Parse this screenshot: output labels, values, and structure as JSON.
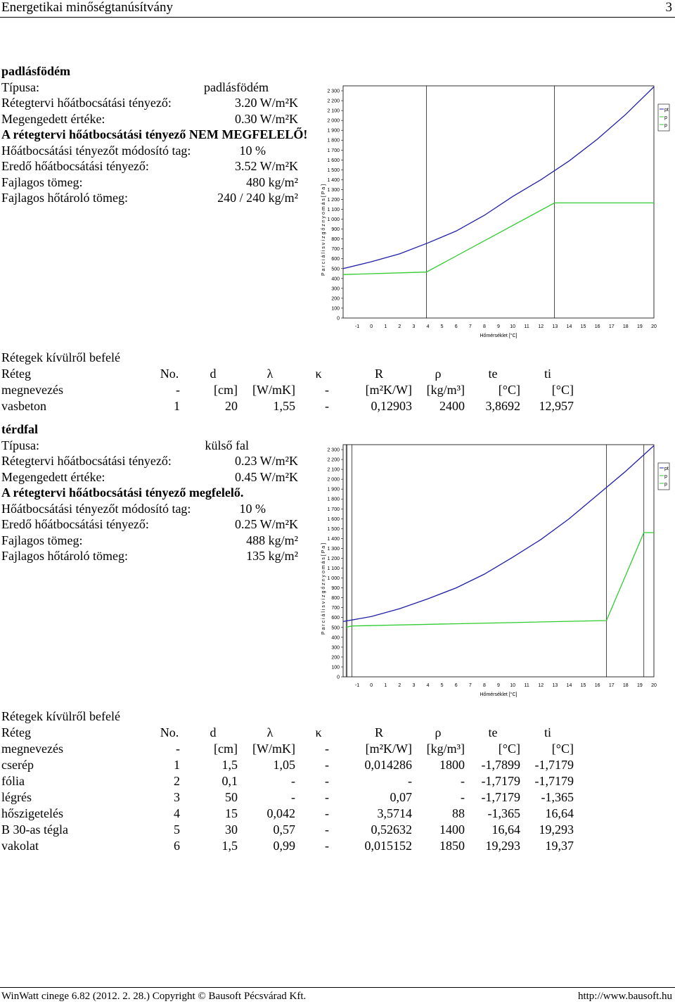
{
  "header": {
    "title": "Energetikai minőségtanúsítvány",
    "page": "3"
  },
  "section1": {
    "heading": "padlásfödém",
    "rows": [
      {
        "label": "Típusa:",
        "value": "padlásfödém"
      },
      {
        "label": "Rétegtervi hőátbocsátási tényező:",
        "value": "3.20 W/m²K"
      },
      {
        "label": "Megengedett értéke:",
        "value": "0.30 W/m²K"
      }
    ],
    "verdict": "A rétegtervi hőátbocsátási tényező NEM MEGFELELŐ!",
    "rows2": [
      {
        "label": "Hőátbocsátási tényezőt módosító tag:",
        "value": "10 %"
      },
      {
        "label": "Eredő hőátbocsátási tényező:",
        "value": "3.52 W/m²K"
      },
      {
        "label": "Fajlagos tömeg:",
        "value": "480 kg/m²"
      },
      {
        "label": "Fajlagos hőtároló tömeg:",
        "value": "240 / 240 kg/m²"
      }
    ],
    "layers_title": "Rétegek kívülről befelé",
    "layers": [
      [
        "vasbeton",
        "1",
        "20",
        "1,55",
        "-",
        "0,12903",
        "2400",
        "3,8692",
        "12,957"
      ]
    ]
  },
  "section2": {
    "heading": "térdfal",
    "rows": [
      {
        "label": "Típusa:",
        "value": "külső fal"
      },
      {
        "label": "Rétegtervi hőátbocsátási tényező:",
        "value": "0.23 W/m²K"
      },
      {
        "label": "Megengedett értéke:",
        "value": "0.45 W/m²K"
      }
    ],
    "verdict": "A rétegtervi hőátbocsátási tényező megfelelő.",
    "rows2": [
      {
        "label": "Hőátbocsátási tényezőt módosító tag:",
        "value": "10 %"
      },
      {
        "label": "Eredő hőátbocsátási tényező:",
        "value": "0.25 W/m²K"
      },
      {
        "label": "Fajlagos tömeg:",
        "value": "488 kg/m²"
      },
      {
        "label": "Fajlagos hőtároló tömeg:",
        "value": "135 kg/m²"
      }
    ],
    "layers_title": "Rétegek kívülről befelé",
    "layers": [
      [
        "cserép",
        "1",
        "1,5",
        "1,05",
        "-",
        "0,014286",
        "1800",
        "-1,7899",
        "-1,7179"
      ],
      [
        "fólia",
        "2",
        "0,1",
        "-",
        "-",
        "-",
        "-",
        "-1,7179",
        "-1,7179"
      ],
      [
        "légrés",
        "3",
        "50",
        "-",
        "-",
        "0,07",
        "-",
        "-1,7179",
        "-1,365"
      ],
      [
        "hőszigetelés",
        "4",
        "15",
        "0,042",
        "-",
        "3,5714",
        "88",
        "-1,365",
        "16,64"
      ],
      [
        "B 30-as tégla",
        "5",
        "30",
        "0,57",
        "-",
        "0,52632",
        "1400",
        "16,64",
        "19,293"
      ],
      [
        "vakolat",
        "6",
        "1,5",
        "0,99",
        "-",
        "0,015152",
        "1850",
        "19,293",
        "19,37"
      ]
    ]
  },
  "table_head": {
    "row1": [
      "Réteg",
      "No.",
      "d",
      "λ",
      "κ",
      "R",
      "ρ",
      "te",
      "ti"
    ],
    "row2": [
      "megnevezés",
      "-",
      "[cm]",
      "[W/mK]",
      "-",
      "[m²K/W]",
      "[kg/m³]",
      "[°C]",
      "[°C]"
    ]
  },
  "chart_data": [
    {
      "type": "line",
      "ylabel": "P a r c i á l i s   v í z g ő z n y o m á s  [ P a ]",
      "xlabel": "Hőmérséklet [°C]",
      "xlim": [
        -2,
        20
      ],
      "ylim": [
        0,
        2350
      ],
      "xticks": [
        "-1",
        "0",
        "1",
        "2",
        "3",
        "4",
        "5",
        "6",
        "7",
        "8",
        "9",
        "10",
        "11",
        "12",
        "13",
        "14",
        "15",
        "16",
        "17",
        "18",
        "19",
        "20"
      ],
      "yticks": [
        "0",
        "100",
        "200",
        "300",
        "400",
        "500",
        "600",
        "700",
        "800",
        "900",
        "1 000",
        "1 100",
        "1 200",
        "1 300",
        "1 400",
        "1 500",
        "1 600",
        "1 700",
        "1 800",
        "1 900",
        "2 000",
        "2 100",
        "2 200",
        "2 300"
      ],
      "legend": [
        "pt",
        "p",
        "p"
      ],
      "vlines": [
        3.9,
        12.96
      ],
      "series": [
        {
          "color": "#1f1fa8",
          "x": [
            -2,
            0,
            2,
            4,
            6,
            8,
            10,
            12,
            14,
            16,
            18,
            20
          ],
          "y": [
            500,
            570,
            650,
            760,
            880,
            1040,
            1230,
            1400,
            1590,
            1810,
            2060,
            2340
          ]
        },
        {
          "color": "#2ecc2e",
          "x": [
            -2,
            3.9,
            12.96,
            20
          ],
          "y": [
            440,
            465,
            1165,
            1165
          ]
        }
      ]
    },
    {
      "type": "line",
      "ylabel": "P a r c i á l i s   v í z g ő z n y o m á s  [ P a ]",
      "xlabel": "Hőmérséklet [°C]",
      "xlim": [
        -2,
        20
      ],
      "ylim": [
        0,
        2350
      ],
      "xticks": [
        "-1",
        "0",
        "1",
        "2",
        "3",
        "4",
        "5",
        "6",
        "7",
        "8",
        "9",
        "10",
        "11",
        "12",
        "13",
        "14",
        "15",
        "16",
        "17",
        "18",
        "19",
        "20"
      ],
      "yticks": [
        "0",
        "100",
        "200",
        "300",
        "400",
        "500",
        "600",
        "700",
        "800",
        "900",
        "1 000",
        "1 100",
        "1 200",
        "1 300",
        "1 400",
        "1 500",
        "1 600",
        "1 700",
        "1 800",
        "1 900",
        "2 000",
        "2 100",
        "2 200",
        "2 300"
      ],
      "legend": [
        "pt",
        "p",
        "p"
      ],
      "vlines": [
        -1.79,
        -1.72,
        -1.37,
        16.64,
        19.29
      ],
      "series": [
        {
          "color": "#1f1fa8",
          "x": [
            -2,
            0,
            2,
            4,
            6,
            8,
            10,
            12,
            14,
            16,
            18,
            20
          ],
          "y": [
            560,
            610,
            690,
            790,
            900,
            1040,
            1210,
            1390,
            1600,
            1840,
            2080,
            2340
          ]
        },
        {
          "color": "#2ecc2e",
          "x": [
            -1.79,
            -1.72,
            -1.37,
            16.64,
            19.29,
            20
          ],
          "y": [
            505,
            505,
            515,
            570,
            1460,
            1460
          ]
        }
      ]
    }
  ],
  "footer": {
    "left": "WinWatt cinege 6.82 (2012. 2. 28.) Copyright © Bausoft Pécsvárad Kft.",
    "right": "http://www.bausoft.hu"
  }
}
